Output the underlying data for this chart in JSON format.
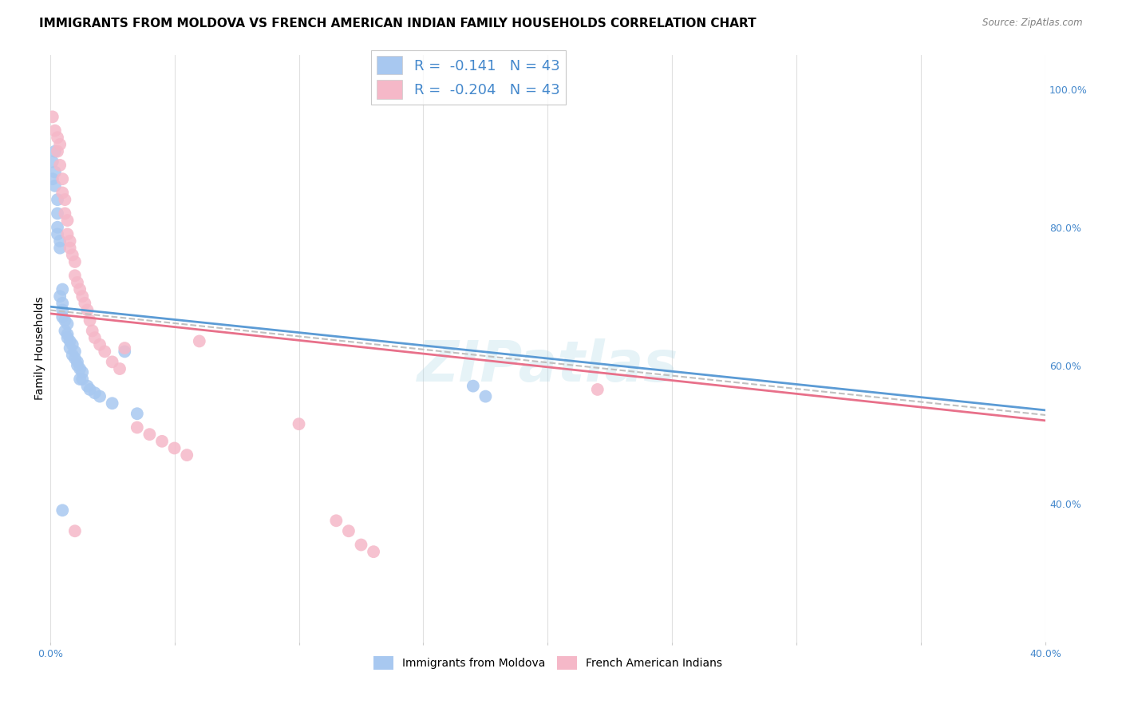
{
  "title": "IMMIGRANTS FROM MOLDOVA VS FRENCH AMERICAN INDIAN FAMILY HOUSEHOLDS CORRELATION CHART",
  "source": "Source: ZipAtlas.com",
  "ylabel": "Family Households",
  "xlim": [
    0.0,
    0.4
  ],
  "ylim": [
    0.2,
    1.05
  ],
  "x_tick_positions": [
    0.0,
    0.05,
    0.1,
    0.15,
    0.2,
    0.25,
    0.3,
    0.35,
    0.4
  ],
  "x_tick_labels": [
    "0.0%",
    "",
    "",
    "",
    "",
    "",
    "",
    "",
    "40.0%"
  ],
  "y_ticks_right": [
    0.4,
    0.6,
    0.8,
    1.0
  ],
  "y_tick_labels_right": [
    "40.0%",
    "60.0%",
    "80.0%",
    "100.0%"
  ],
  "watermark": "ZIPatlas",
  "color_blue": "#a8c8f0",
  "color_pink": "#f5b8c8",
  "line_color_blue": "#5b9bd5",
  "line_color_pink": "#e8708a",
  "line_color_dash": "#c0c0c0",
  "grid_color": "#e0e0e0",
  "background_color": "#ffffff",
  "title_fontsize": 11,
  "axis_label_fontsize": 10,
  "tick_fontsize": 9,
  "moldova_x": [
    0.001,
    0.001,
    0.002,
    0.002,
    0.002,
    0.003,
    0.003,
    0.003,
    0.003,
    0.004,
    0.004,
    0.004,
    0.005,
    0.005,
    0.005,
    0.005,
    0.006,
    0.006,
    0.007,
    0.007,
    0.007,
    0.008,
    0.008,
    0.009,
    0.009,
    0.01,
    0.01,
    0.011,
    0.011,
    0.012,
    0.013,
    0.013,
    0.015,
    0.016,
    0.018,
    0.02,
    0.025,
    0.03,
    0.035,
    0.17,
    0.175,
    0.005,
    0.012
  ],
  "moldova_y": [
    0.895,
    0.87,
    0.91,
    0.88,
    0.86,
    0.84,
    0.82,
    0.8,
    0.79,
    0.78,
    0.77,
    0.7,
    0.71,
    0.69,
    0.68,
    0.67,
    0.665,
    0.65,
    0.66,
    0.645,
    0.64,
    0.635,
    0.625,
    0.63,
    0.615,
    0.62,
    0.61,
    0.605,
    0.6,
    0.595,
    0.59,
    0.58,
    0.57,
    0.565,
    0.56,
    0.555,
    0.545,
    0.62,
    0.53,
    0.57,
    0.555,
    0.39,
    0.58
  ],
  "french_x": [
    0.001,
    0.002,
    0.003,
    0.003,
    0.004,
    0.004,
    0.005,
    0.005,
    0.006,
    0.006,
    0.007,
    0.007,
    0.008,
    0.008,
    0.009,
    0.01,
    0.01,
    0.011,
    0.012,
    0.013,
    0.014,
    0.015,
    0.016,
    0.017,
    0.018,
    0.02,
    0.022,
    0.025,
    0.028,
    0.03,
    0.035,
    0.04,
    0.045,
    0.05,
    0.055,
    0.06,
    0.1,
    0.115,
    0.12,
    0.125,
    0.13,
    0.22,
    0.01
  ],
  "french_y": [
    0.96,
    0.94,
    0.93,
    0.91,
    0.92,
    0.89,
    0.87,
    0.85,
    0.84,
    0.82,
    0.81,
    0.79,
    0.78,
    0.77,
    0.76,
    0.75,
    0.73,
    0.72,
    0.71,
    0.7,
    0.69,
    0.68,
    0.665,
    0.65,
    0.64,
    0.63,
    0.62,
    0.605,
    0.595,
    0.625,
    0.51,
    0.5,
    0.49,
    0.48,
    0.47,
    0.635,
    0.515,
    0.375,
    0.36,
    0.34,
    0.33,
    0.565,
    0.36
  ]
}
